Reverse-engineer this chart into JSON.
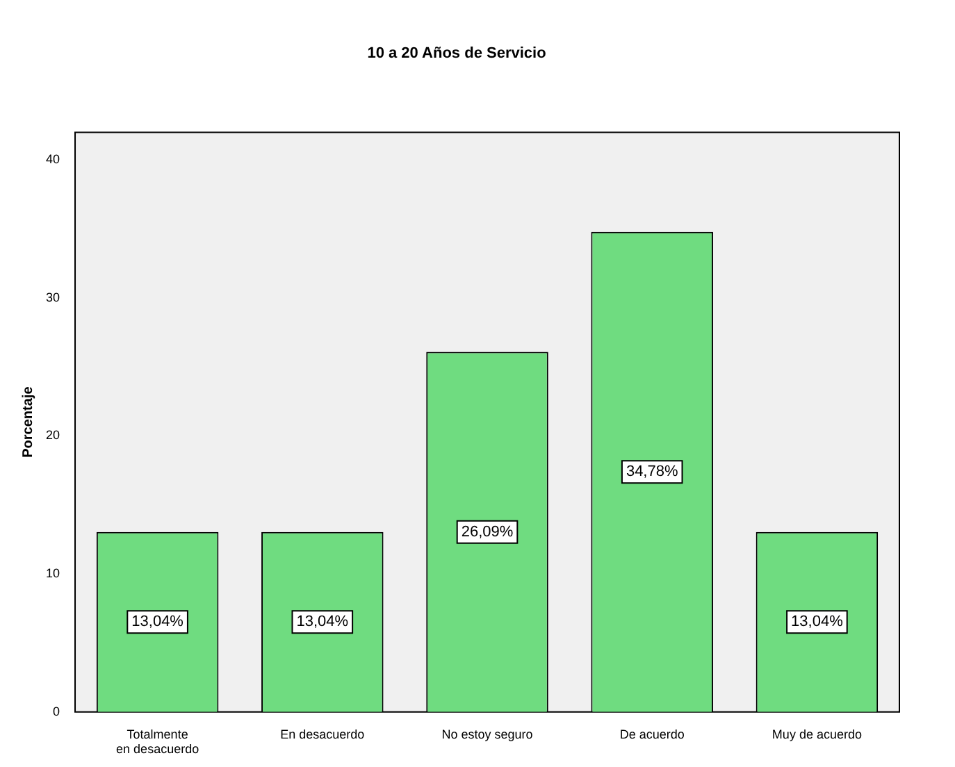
{
  "chart_data": {
    "type": "bar",
    "title": "10 a 20 Años de Servicio",
    "ylabel": "Porcentaje",
    "categories": [
      "Totalmente  en desacuerdo",
      "En desacuerdo",
      "No estoy seguro",
      "De acuerdo",
      "Muy de acuerdo"
    ],
    "values": [
      13.04,
      13.04,
      26.09,
      34.78,
      13.04
    ],
    "value_labels": [
      "13,04%",
      "13,04%",
      "26,09%",
      "34,78%",
      "13,04%"
    ],
    "color": "#6fdc80",
    "ylim": [
      0,
      42
    ],
    "yticks": [
      0,
      10,
      20,
      30,
      40
    ],
    "grid": false,
    "legend": false
  }
}
